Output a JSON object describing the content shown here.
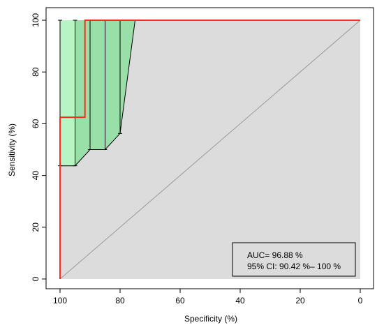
{
  "chart_data": {
    "type": "line",
    "title": "",
    "xlabel": "Specificity (%)",
    "ylabel": "Sensitivity (%)",
    "xlim": [
      100,
      0
    ],
    "ylim": [
      0,
      100
    ],
    "x_ticks": [
      "100",
      "80",
      "60",
      "40",
      "20",
      "0"
    ],
    "y_ticks": [
      "0",
      "20",
      "40",
      "60",
      "80",
      "100"
    ],
    "x_tick_values": [
      100,
      80,
      60,
      40,
      20,
      0
    ],
    "y_tick_values": [
      0,
      20,
      40,
      60,
      80,
      100
    ],
    "grid": false,
    "legend_position": "bottom-right",
    "annotations": [
      "AUC= 96.88 %",
      "95% CI: 90.42 %– 100 %"
    ],
    "colors": {
      "roc": "#ff2a1a",
      "auc_fill": "#dcdcdc",
      "ci_fill": "#98e0a8",
      "ci_fill_light": "#b8f5c4",
      "diagonal": "#999999"
    },
    "series": [
      {
        "name": "ROC",
        "x": [
          100,
          100,
          91.7,
          91.7,
          0
        ],
        "y": [
          0,
          62.5,
          62.5,
          100,
          100
        ]
      }
    ],
    "ci_band": {
      "specificity": [
        100,
        95,
        90,
        85,
        80,
        75
      ],
      "sensitivity_lower": [
        43.75,
        43.75,
        50,
        50,
        56.25,
        100
      ],
      "sensitivity_upper": [
        100,
        100,
        100,
        100,
        100,
        100
      ]
    }
  }
}
